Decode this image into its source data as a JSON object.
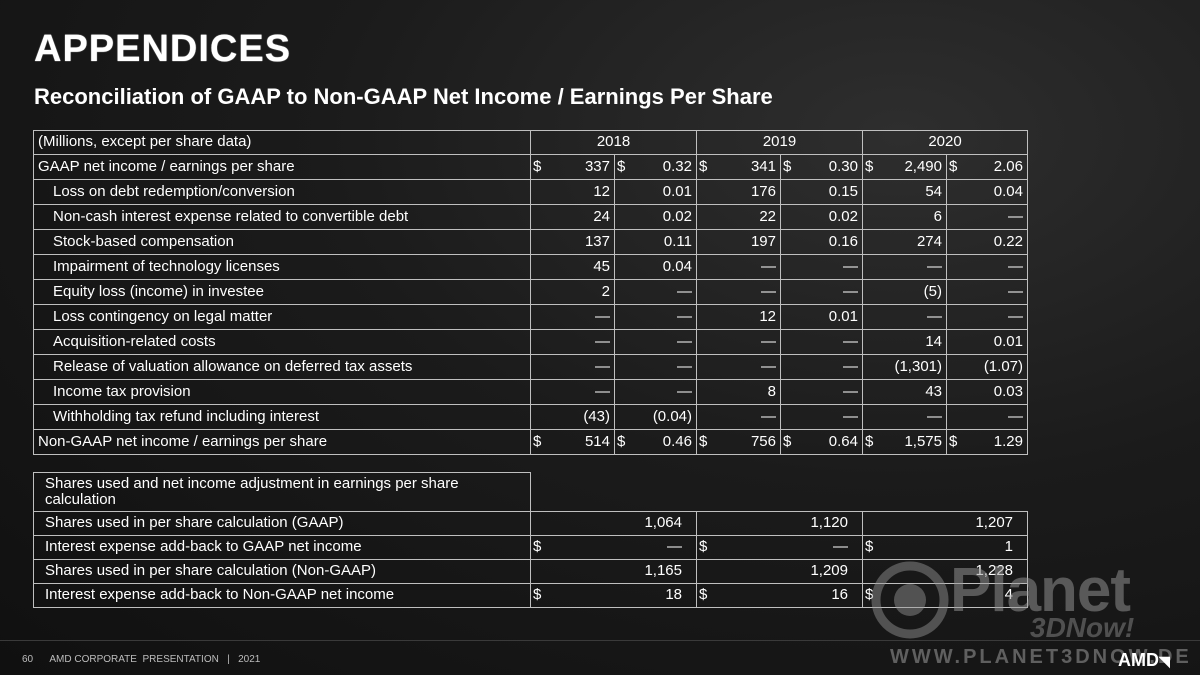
{
  "title": "APPENDICES",
  "subtitle": "Reconciliation of GAAP to Non-GAAP Net Income / Earnings Per Share",
  "main_table": {
    "header": [
      "(Millions, except per share data)",
      "2018",
      "2019",
      "2020"
    ],
    "rows": [
      {
        "label": "GAAP net income / earnings per share",
        "indent": false,
        "cells": [
          {
            "d": "$",
            "v": "337"
          },
          {
            "d": "$",
            "v": "0.32"
          },
          {
            "d": "$",
            "v": "341"
          },
          {
            "d": "$",
            "v": "0.30"
          },
          {
            "d": "$",
            "v": "2,490"
          },
          {
            "d": "$",
            "v": "2.06"
          }
        ]
      },
      {
        "label": "Loss on debt redemption/conversion",
        "indent": true,
        "cells": [
          {
            "v": "12"
          },
          {
            "v": "0.01"
          },
          {
            "v": "176"
          },
          {
            "v": "0.15"
          },
          {
            "v": "54"
          },
          {
            "v": "0.04"
          }
        ]
      },
      {
        "label": "Non-cash interest expense related to convertible debt",
        "indent": true,
        "cells": [
          {
            "v": "24"
          },
          {
            "v": "0.02"
          },
          {
            "v": "22"
          },
          {
            "v": "0.02"
          },
          {
            "v": "6"
          },
          {
            "v": "—"
          }
        ]
      },
      {
        "label": "Stock-based compensation",
        "indent": true,
        "cells": [
          {
            "v": "137"
          },
          {
            "v": "0.11"
          },
          {
            "v": "197"
          },
          {
            "v": "0.16"
          },
          {
            "v": "274"
          },
          {
            "v": "0.22"
          }
        ]
      },
      {
        "label": "Impairment of technology licenses",
        "indent": true,
        "cells": [
          {
            "v": "45"
          },
          {
            "v": "0.04"
          },
          {
            "v": "—"
          },
          {
            "v": "—"
          },
          {
            "v": "—"
          },
          {
            "v": "—"
          }
        ]
      },
      {
        "label": "Equity loss (income) in investee",
        "indent": true,
        "cells": [
          {
            "v": "2"
          },
          {
            "v": "—"
          },
          {
            "v": "—"
          },
          {
            "v": "—"
          },
          {
            "v": "(5)"
          },
          {
            "v": "—"
          }
        ]
      },
      {
        "label": "Loss contingency on legal matter",
        "indent": true,
        "cells": [
          {
            "v": "—"
          },
          {
            "v": "—"
          },
          {
            "v": "12"
          },
          {
            "v": "0.01"
          },
          {
            "v": "—"
          },
          {
            "v": "—"
          }
        ]
      },
      {
        "label": "Acquisition-related costs",
        "indent": true,
        "cells": [
          {
            "v": "—"
          },
          {
            "v": "—"
          },
          {
            "v": "—"
          },
          {
            "v": "—"
          },
          {
            "v": "14"
          },
          {
            "v": "0.01"
          }
        ]
      },
      {
        "label": "Release of valuation allowance on deferred tax assets",
        "indent": true,
        "cells": [
          {
            "v": "—"
          },
          {
            "v": "—"
          },
          {
            "v": "—"
          },
          {
            "v": "—"
          },
          {
            "v": "(1,301)"
          },
          {
            "v": "(1.07)"
          }
        ]
      },
      {
        "label": "Income tax provision",
        "indent": true,
        "cells": [
          {
            "v": "—"
          },
          {
            "v": "—"
          },
          {
            "v": "8"
          },
          {
            "v": "—"
          },
          {
            "v": "43"
          },
          {
            "v": "0.03"
          }
        ]
      },
      {
        "label": "Withholding tax refund including interest",
        "indent": true,
        "cells": [
          {
            "v": "(43)"
          },
          {
            "v": "(0.04)"
          },
          {
            "v": "—"
          },
          {
            "v": "—"
          },
          {
            "v": "—"
          },
          {
            "v": "—"
          }
        ]
      },
      {
        "label": "Non-GAAP net income / earnings per share",
        "indent": false,
        "cells": [
          {
            "d": "$",
            "v": "514"
          },
          {
            "d": "$",
            "v": "0.46"
          },
          {
            "d": "$",
            "v": "756"
          },
          {
            "d": "$",
            "v": "0.64"
          },
          {
            "d": "$",
            "v": "1,575"
          },
          {
            "d": "$",
            "v": "1.29"
          }
        ]
      }
    ]
  },
  "shares_table": {
    "title": "Shares used and net income adjustment in earnings per share calculation",
    "rows": [
      {
        "label": "Shares used in per share calculation (GAAP)",
        "cells": [
          {
            "v": "1,064"
          },
          {
            "v": "1,120"
          },
          {
            "v": "1,207"
          }
        ]
      },
      {
        "label": "Interest expense add-back to GAAP net income",
        "cells": [
          {
            "d": "$",
            "v": "—"
          },
          {
            "d": "$",
            "v": "—"
          },
          {
            "d": "$",
            "v": "1"
          }
        ]
      },
      {
        "label": "Shares used in per share calculation (Non-GAAP)",
        "cells": [
          {
            "v": "1,165"
          },
          {
            "v": "1,209"
          },
          {
            "v": "1,228"
          }
        ]
      },
      {
        "label": "Interest expense add-back to Non-GAAP net income",
        "cells": [
          {
            "d": "$",
            "v": "18"
          },
          {
            "d": "$",
            "v": "16"
          },
          {
            "d": "$",
            "v": "4"
          }
        ]
      }
    ]
  },
  "footer": {
    "page_number": "60",
    "text": "AMD CORPORATE  PRESENTATION   |   2021"
  },
  "watermark": {
    "brand": "Planet",
    "sub": "3DNow!",
    "url": "WWW.PLANET3DNOW.DE"
  },
  "logo": {
    "text": "AMD",
    "glyph": "arrow-logo-icon"
  }
}
